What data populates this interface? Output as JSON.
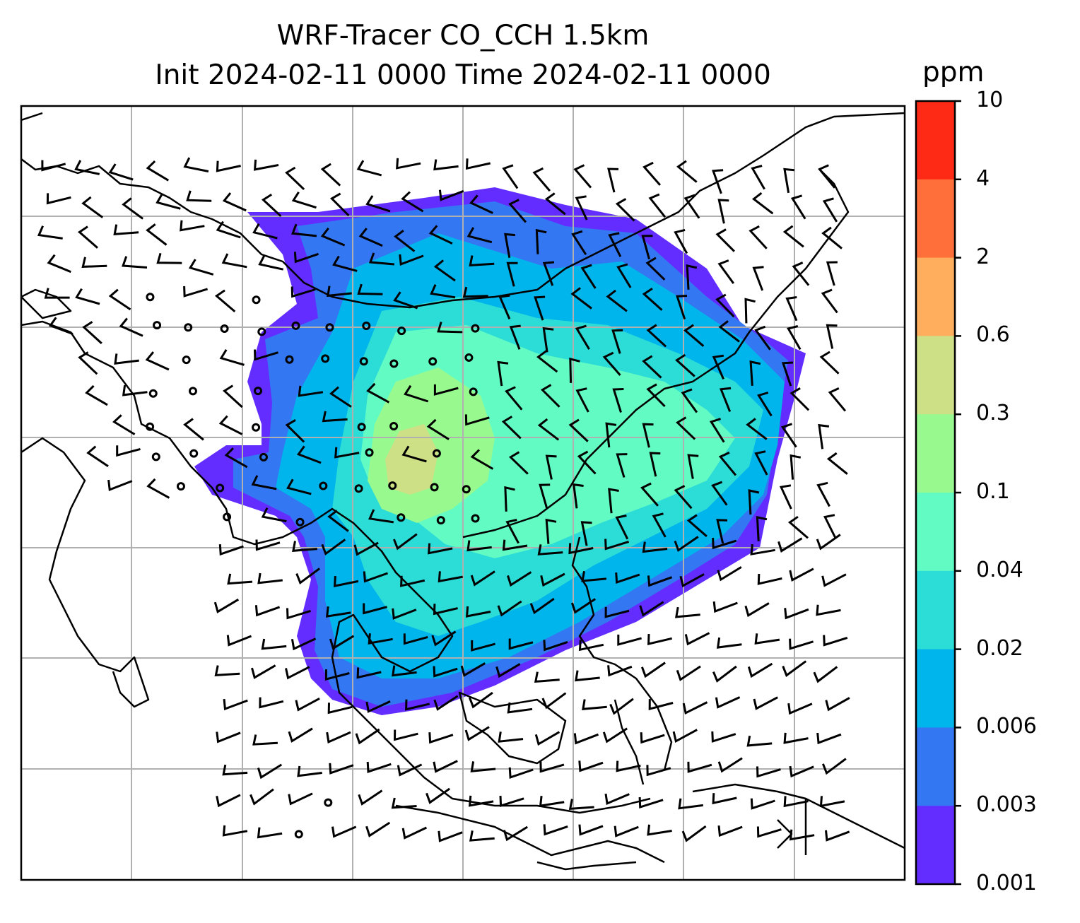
{
  "title": {
    "line1": "WRF-Tracer CO_CCH 1.5km",
    "line2": "Init 2024-02-11 0000 Time 2024-02-11 0000"
  },
  "colorbar": {
    "unit": "ppm",
    "ticks": [
      "10",
      "4",
      "2",
      "0.6",
      "0.3",
      "0.1",
      "0.04",
      "0.02",
      "0.006",
      "0.003",
      "0.001"
    ],
    "colors": [
      "#ff2a15",
      "#ff6f3a",
      "#ffae5e",
      "#cde085",
      "#98f98e",
      "#62fbc4",
      "#2cdcd6",
      "#00b4ec",
      "#3377f2",
      "#632dff"
    ]
  },
  "map": {
    "gridlines": true,
    "background": "#ffffff",
    "field_colors": {
      "lowest": "#632dff",
      "low": "#3377f2",
      "mid_low": "#00b4ec",
      "mid": "#2cdcd6",
      "mid_high": "#62fbc4",
      "high": "#98f98e",
      "highest": "#cde085"
    }
  }
}
